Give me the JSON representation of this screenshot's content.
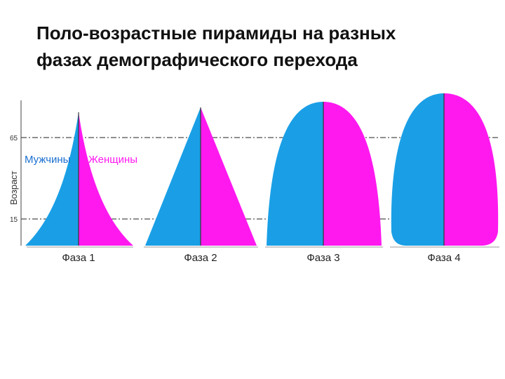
{
  "title": {
    "line1": "Поло-возрастные пирамиды на разных",
    "line2": "фазах демографического перехода"
  },
  "axis": {
    "label": "Возраст",
    "ticks": [
      "65",
      "15"
    ]
  },
  "legend": {
    "male": "Мужчины",
    "female": "Женщины"
  },
  "phases": [
    {
      "label": "Фаза 1"
    },
    {
      "label": "Фаза 2"
    },
    {
      "label": "Фаза 3"
    },
    {
      "label": "Фаза 4"
    }
  ],
  "colors": {
    "male": "#1a9fe6",
    "female": "#ff19ef",
    "divider": "#333333",
    "dashline": "#222222"
  }
}
